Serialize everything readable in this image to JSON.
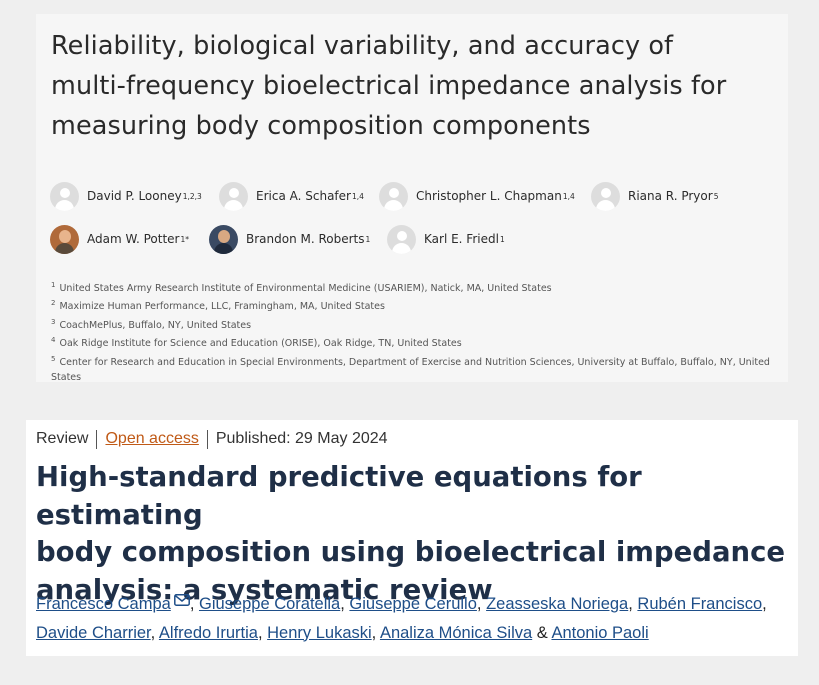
{
  "article1": {
    "title_lines": [
      "Reliability, biological variability, and accuracy of",
      "multi-frequency bioelectrical impedance analysis for",
      "measuring body composition components"
    ],
    "authors": [
      {
        "name": "David P. Looney",
        "sup": "1,2,3",
        "avatar": "placeholder-avatar-icon"
      },
      {
        "name": "Erica A. Schafer",
        "sup": "1,4",
        "avatar": "placeholder-avatar-icon"
      },
      {
        "name": "Christopher L. Chapman",
        "sup": "1,4",
        "avatar": "placeholder-avatar-icon"
      },
      {
        "name": "Riana R. Pryor",
        "sup": "5",
        "avatar": "placeholder-avatar-icon"
      },
      {
        "name": "Adam W. Potter",
        "sup": "1*",
        "avatar": "photo-avatar"
      },
      {
        "name": "Brandon M. Roberts",
        "sup": "1",
        "avatar": "photo-avatar"
      },
      {
        "name": "Karl E. Friedl",
        "sup": "1",
        "avatar": "placeholder-avatar-icon"
      }
    ],
    "affiliations": [
      {
        "num": "1",
        "text": "United States Army Research Institute of Environmental Medicine (USARIEM), Natick, MA, United States"
      },
      {
        "num": "2",
        "text": "Maximize Human Performance, LLC, Framingham, MA, United States"
      },
      {
        "num": "3",
        "text": "CoachMePlus, Buffalo, NY, United States"
      },
      {
        "num": "4",
        "text": "Oak Ridge Institute for Science and Education (ORISE), Oak Ridge, TN, United States"
      },
      {
        "num": "5",
        "text": "Center for Research and Education in Special Environments, Department of Exercise and Nutrition Sciences, University at Buffalo, Buffalo, NY, United States"
      }
    ]
  },
  "article2": {
    "type": "Review",
    "access": "Open access",
    "published": "Published: 29 May 2024",
    "title_lines": [
      "High-standard predictive equations for estimating",
      "body composition using bioelectrical impedance",
      "analysis: a systematic review"
    ],
    "authors": [
      "Francesco Campa",
      "Giuseppe Coratella",
      "Giuseppe Cerullo",
      "Zeasseska Noriega",
      "Rubén Francisco",
      "Davide Charrier",
      "Alfredo Irurtia",
      "Henry Lukaski",
      "Analiza Mónica Silva",
      "Antonio Paoli"
    ],
    "author_separator": ", ",
    "last_separator": " & ",
    "corresponding_icon": "mail-icon"
  }
}
